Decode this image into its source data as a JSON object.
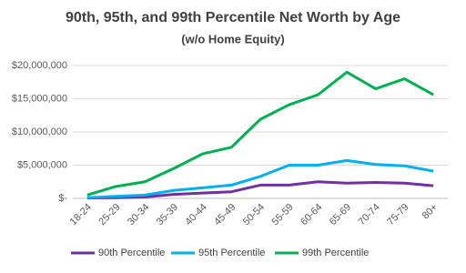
{
  "chart_data": {
    "type": "line",
    "title": "90th, 95th, and 99th Percentile Net Worth by Age",
    "subtitle": "(w/o Home Equity)",
    "categories": [
      "18-24",
      "25-29",
      "30-34",
      "35-39",
      "40-44",
      "45-49",
      "50-54",
      "55-59",
      "60-64",
      "65-69",
      "70-74",
      "75-79",
      "80+"
    ],
    "series": [
      {
        "name": "90th Percentile",
        "color": "#7030a0",
        "values": [
          50000,
          100000,
          200000,
          600000,
          800000,
          1000000,
          2000000,
          2000000,
          2500000,
          2300000,
          2400000,
          2300000,
          1900000
        ]
      },
      {
        "name": "95th Percentile",
        "color": "#00b0f0",
        "values": [
          100000,
          300000,
          500000,
          1200000,
          1600000,
          2000000,
          3300000,
          5000000,
          5000000,
          5700000,
          5100000,
          4900000,
          4100000
        ]
      },
      {
        "name": "99th Percentile",
        "color": "#00b050",
        "values": [
          500000,
          1800000,
          2500000,
          4500000,
          6700000,
          7700000,
          11900000,
          14100000,
          15600000,
          19000000,
          16500000,
          18000000,
          15600000
        ]
      }
    ],
    "ylim": [
      0,
      22000000
    ],
    "yticks": [
      {
        "value": 0,
        "label": "$-"
      },
      {
        "value": 5000000,
        "label": "$5,000,000"
      },
      {
        "value": 10000000,
        "label": "$10,000,000"
      },
      {
        "value": 15000000,
        "label": "$15,000,000"
      },
      {
        "value": 20000000,
        "label": "$20,000,000"
      }
    ],
    "grid": true,
    "legend": "bottom"
  }
}
